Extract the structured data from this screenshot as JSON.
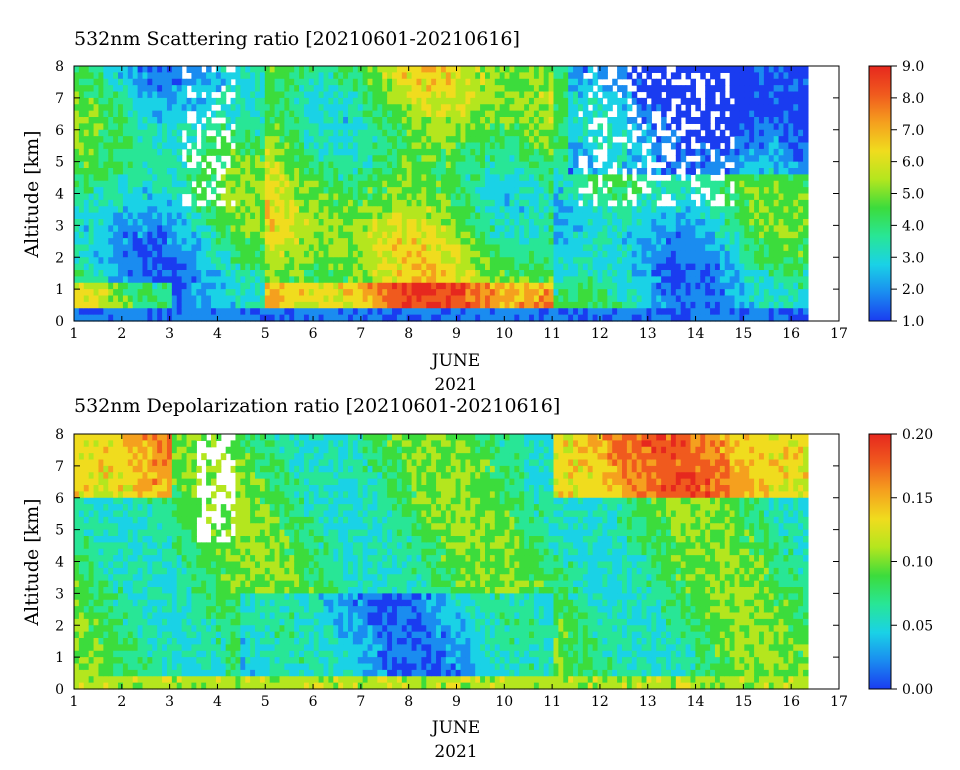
{
  "colors": {
    "colormap": [
      "#1a3cf0",
      "#1a8cf0",
      "#1ad2e6",
      "#28e696",
      "#3cdc3c",
      "#b4e61e",
      "#f0dc1e",
      "#f5a01e",
      "#f05a1e",
      "#e6281e"
    ],
    "frame": "#000000",
    "background": "#ffffff"
  },
  "chart_data": [
    {
      "type": "heatmap",
      "title": "532nm Scattering ratio [20210601-20210616]",
      "xlabel": "JUNE",
      "xlabel2": "2021",
      "ylabel": "Altitude [km]",
      "x_ticks": [
        "1",
        "2",
        "3",
        "4",
        "5",
        "6",
        "7",
        "8",
        "9",
        "10",
        "11",
        "12",
        "13",
        "14",
        "15",
        "16",
        "17"
      ],
      "y_ticks": [
        "0",
        "1",
        "2",
        "3",
        "4",
        "5",
        "6",
        "7",
        "8"
      ],
      "xlim": [
        1,
        17
      ],
      "ylim": [
        0,
        8
      ],
      "data_end_day": 16.35,
      "colorbar": {
        "min": 1.0,
        "max": 9.0,
        "ticks": [
          "1.0",
          "2.0",
          "3.0",
          "4.0",
          "5.0",
          "6.0",
          "7.0",
          "8.0",
          "9.0"
        ]
      }
    },
    {
      "type": "heatmap",
      "title": "532nm Depolarization ratio [20210601-20210616]",
      "xlabel": "JUNE",
      "xlabel2": "2021",
      "ylabel": "Altitude [km]",
      "x_ticks": [
        "1",
        "2",
        "3",
        "4",
        "5",
        "6",
        "7",
        "8",
        "9",
        "10",
        "11",
        "12",
        "13",
        "14",
        "15",
        "16",
        "17"
      ],
      "y_ticks": [
        "0",
        "1",
        "2",
        "3",
        "4",
        "5",
        "6",
        "7",
        "8"
      ],
      "xlim": [
        1,
        17
      ],
      "ylim": [
        0,
        8
      ],
      "data_end_day": 16.35,
      "colorbar": {
        "min": 0.0,
        "max": 0.2,
        "ticks": [
          "0.00",
          "0.05",
          "0.10",
          "0.15",
          "0.20"
        ]
      }
    }
  ]
}
